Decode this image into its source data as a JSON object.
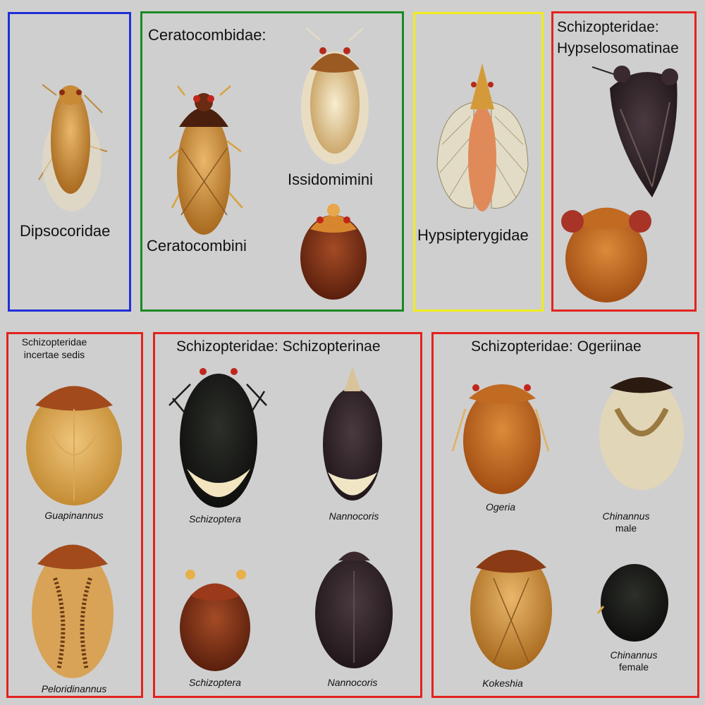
{
  "panels": {
    "dipsocoridae": {
      "label": "Dipsocoridae",
      "border": "#1f2fd6"
    },
    "ceratocombidae": {
      "label": "Ceratocombidae:",
      "border": "#1a8a23",
      "sub_ceratocombini": "Ceratocombini",
      "sub_issidomimini": "Issidomimini"
    },
    "hypsipterygidae": {
      "label": "Hypsipterygidae",
      "border": "#f1ec1c"
    },
    "hypselosomatinae": {
      "line1": "Schizopteridae:",
      "line2": "Hypselosomatinae",
      "border": "#e3231e"
    },
    "incertae_sedis": {
      "line1": "Schizopteridae",
      "line2": "incertae sedis",
      "border": "#e3231e",
      "genus_top": "Guapinannus",
      "genus_bottom": "Peloridinannus"
    },
    "schizopterinae": {
      "label": "Schizopteridae: Schizopterinae",
      "border": "#e3231e",
      "genus_tl": "Schizoptera",
      "genus_tr": "Nannocoris",
      "genus_bl": "Schizoptera",
      "genus_br": "Nannocoris"
    },
    "ogeriinae": {
      "label": "Schizopteridae: Ogeriinae",
      "border": "#e3231e",
      "genus_tl": "Ogeria",
      "genus_tr_1": "Chinannus",
      "genus_tr_2": "male",
      "genus_bl": "Kokeshia",
      "genus_br_1": "Chinannus",
      "genus_br_2": "female"
    }
  },
  "colors": {
    "background": "#cfcfcf",
    "blue": "#1f2fd6",
    "green": "#1a8a23",
    "yellow": "#f1ec1c",
    "red": "#e3231e"
  }
}
